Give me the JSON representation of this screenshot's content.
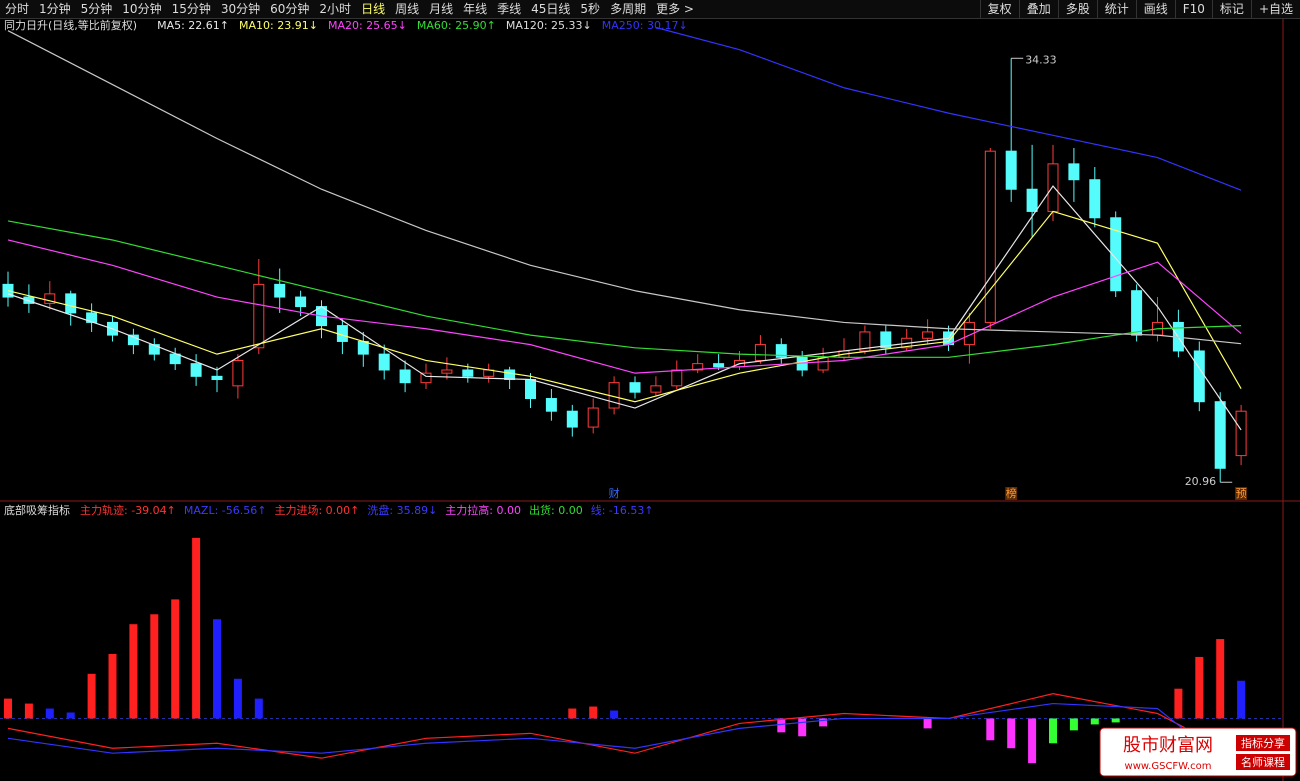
{
  "toolbar": {
    "left": [
      "分时",
      "1分钟",
      "5分钟",
      "10分钟",
      "15分钟",
      "30分钟",
      "60分钟",
      "2小时",
      "日线",
      "周线",
      "月线",
      "年线",
      "季线",
      "45日线",
      "5秒",
      "多周期",
      "更多 >"
    ],
    "right": [
      "复权",
      "叠加",
      "多股",
      "统计",
      "画线",
      "F10",
      "标记",
      "+自选"
    ]
  },
  "chart_data": [
    {
      "type": "candlestick",
      "title": "同力日升(日线,等比前复权)",
      "ylim": [
        20.4,
        35.6
      ],
      "up_color": "#ff3c3c",
      "down_color": "#54fcfc",
      "open": [
        27.2,
        26.8,
        26.6,
        26.9,
        26.3,
        26.0,
        25.6,
        25.3,
        25.0,
        24.7,
        24.3,
        24.0,
        25.2,
        27.2,
        26.8,
        26.5,
        25.9,
        25.4,
        25.0,
        24.5,
        24.1,
        24.4,
        24.5,
        24.3,
        24.5,
        24.2,
        23.6,
        23.2,
        22.7,
        23.3,
        24.1,
        23.8,
        24.0,
        24.5,
        24.7,
        24.6,
        24.8,
        25.3,
        24.9,
        24.5,
        24.9,
        25.1,
        25.7,
        25.2,
        25.5,
        25.7,
        25.3,
        26.0,
        31.4,
        30.2,
        29.5,
        31.0,
        30.5,
        29.3,
        27.0,
        25.6,
        26.0,
        25.1,
        23.5,
        21.8
      ],
      "high": [
        27.6,
        27.2,
        27.3,
        27.0,
        26.6,
        26.2,
        25.8,
        25.5,
        25.2,
        25.0,
        24.6,
        25.0,
        28.0,
        27.7,
        27.0,
        26.7,
        26.1,
        25.7,
        25.3,
        24.8,
        24.7,
        24.9,
        24.7,
        24.7,
        24.6,
        24.4,
        23.9,
        23.4,
        23.6,
        24.3,
        24.3,
        24.3,
        24.8,
        25.0,
        25.0,
        25.1,
        25.6,
        25.5,
        25.1,
        25.2,
        25.5,
        25.9,
        25.9,
        25.8,
        26.1,
        25.9,
        26.3,
        31.5,
        34.33,
        31.6,
        31.6,
        31.5,
        30.9,
        29.5,
        27.2,
        26.8,
        26.4,
        25.4,
        23.8,
        23.4
      ],
      "low": [
        26.5,
        26.3,
        26.4,
        25.9,
        25.7,
        25.4,
        25.0,
        24.8,
        24.5,
        24.0,
        23.8,
        23.6,
        25.0,
        26.3,
        26.2,
        25.5,
        25.0,
        24.6,
        24.2,
        23.8,
        23.9,
        24.2,
        24.1,
        24.1,
        23.9,
        23.3,
        22.9,
        22.4,
        22.5,
        23.1,
        23.6,
        23.7,
        23.9,
        24.4,
        24.5,
        24.5,
        24.7,
        24.7,
        24.3,
        24.4,
        24.8,
        25.0,
        25.0,
        25.1,
        25.3,
        25.1,
        24.7,
        25.8,
        29.8,
        28.7,
        29.2,
        29.8,
        29.0,
        26.8,
        25.4,
        25.4,
        24.9,
        23.2,
        20.96,
        21.5
      ],
      "close": [
        26.8,
        26.6,
        26.9,
        26.3,
        26.0,
        25.6,
        25.3,
        25.0,
        24.7,
        24.3,
        24.2,
        24.8,
        27.2,
        26.8,
        26.5,
        25.9,
        25.4,
        25.0,
        24.5,
        24.1,
        24.4,
        24.5,
        24.3,
        24.5,
        24.2,
        23.6,
        23.2,
        22.7,
        23.3,
        24.1,
        23.8,
        24.0,
        24.5,
        24.7,
        24.6,
        24.8,
        25.3,
        24.9,
        24.5,
        24.9,
        25.1,
        25.7,
        25.2,
        25.5,
        25.7,
        25.3,
        26.0,
        31.4,
        30.2,
        29.5,
        31.0,
        30.5,
        29.3,
        27.0,
        25.6,
        26.0,
        25.1,
        23.5,
        21.4,
        23.2
      ],
      "lines": [
        {
          "name": "MA5",
          "legend": ": 22.61↑",
          "color": "#e8e8e8",
          "x": [
            0,
            5,
            10,
            15,
            20,
            25,
            30,
            35,
            40,
            45,
            50,
            55,
            59
          ],
          "values": [
            26.9,
            25.8,
            24.5,
            26.5,
            24.3,
            24.2,
            23.3,
            24.7,
            25.1,
            25.5,
            30.3,
            26.5,
            22.61
          ]
        },
        {
          "name": "MA10",
          "legend": ": 23.91↓",
          "color": "#ffff66",
          "x": [
            0,
            5,
            10,
            15,
            20,
            25,
            30,
            35,
            40,
            45,
            50,
            55,
            59
          ],
          "values": [
            27.0,
            26.2,
            25.0,
            25.8,
            24.8,
            24.3,
            23.5,
            24.4,
            25.0,
            25.4,
            29.5,
            28.5,
            23.91
          ]
        },
        {
          "name": "MA20",
          "legend": ": 25.65↓",
          "color": "#ff44ff",
          "x": [
            0,
            5,
            10,
            15,
            20,
            25,
            30,
            35,
            40,
            45,
            50,
            55,
            59
          ],
          "values": [
            28.6,
            27.8,
            26.8,
            26.2,
            25.8,
            25.3,
            24.4,
            24.6,
            24.8,
            25.3,
            26.8,
            27.9,
            25.65
          ]
        },
        {
          "name": "MA60",
          "legend": ": 25.90↑",
          "color": "#33dd33",
          "x": [
            0,
            5,
            10,
            15,
            20,
            25,
            30,
            35,
            40,
            45,
            50,
            55,
            59
          ],
          "values": [
            29.2,
            28.6,
            27.8,
            27.0,
            26.2,
            25.6,
            25.2,
            25.0,
            24.9,
            24.9,
            25.3,
            25.8,
            25.9
          ]
        },
        {
          "name": "MA120",
          "legend": ": 25.33↓",
          "color": "#c8c8c8",
          "x": [
            0,
            5,
            10,
            15,
            20,
            25,
            30,
            35,
            40,
            45,
            50,
            55,
            59
          ],
          "values": [
            35.2,
            33.5,
            31.8,
            30.2,
            28.9,
            27.8,
            27.0,
            26.4,
            26.0,
            25.8,
            25.7,
            25.6,
            25.33
          ]
        },
        {
          "name": "MA250",
          "legend": ": 30.17↓",
          "color": "#3333ff",
          "x": [
            31,
            35,
            40,
            45,
            50,
            55,
            59
          ],
          "values": [
            35.3,
            34.6,
            33.4,
            32.6,
            31.9,
            31.2,
            30.17
          ]
        }
      ],
      "annotations": [
        {
          "x": 48,
          "value": 34.33
        },
        {
          "x": 58,
          "value": 20.96
        }
      ],
      "markers": [
        {
          "text": "财",
          "x": 29,
          "color": "#3a6aff"
        },
        {
          "text": "榜",
          "x": 48,
          "color": "#ff9a3a"
        },
        {
          "text": "预",
          "x": 59,
          "color": "#ff9a3a"
        }
      ]
    },
    {
      "type": "bar",
      "title": "底部吸筹指标",
      "ylim": [
        -60,
        200
      ],
      "legend": [
        {
          "text": "主力轨迹: -39.04↑",
          "color": "#ff3333"
        },
        {
          "text": "MAZL: -56.56↑",
          "color": "#3a3aff"
        },
        {
          "text": "主力进场: 0.00↑",
          "color": "#ff3333"
        },
        {
          "text": "洗盘: 35.89↓",
          "color": "#3a3aff"
        },
        {
          "text": "主力拉高: 0.00",
          "color": "#ff44ff"
        },
        {
          "text": "出货: 0.00",
          "color": "#33dd33"
        },
        {
          "text": "线: -16.53↑",
          "color": "#3a3aff"
        }
      ],
      "series": [
        {
          "color": "#ff2020",
          "x": [
            0,
            1,
            4,
            5,
            6,
            7,
            8,
            9,
            27,
            28,
            56,
            57,
            58
          ],
          "values": [
            20,
            15,
            45,
            65,
            95,
            105,
            120,
            182,
            10,
            12,
            30,
            62,
            80
          ]
        },
        {
          "color": "#2020ff",
          "x": [
            2,
            3,
            10,
            11,
            12,
            29,
            59
          ],
          "values": [
            10,
            6,
            100,
            40,
            20,
            8,
            38
          ]
        },
        {
          "color": "#ff33ff",
          "x": [
            37,
            38,
            39,
            44,
            47,
            48,
            49
          ],
          "values": [
            -14,
            -18,
            -8,
            -10,
            -22,
            -30,
            -45
          ]
        },
        {
          "color": "#33ff33",
          "x": [
            50,
            51,
            52,
            53
          ],
          "values": [
            -25,
            -12,
            -6,
            -4
          ]
        }
      ],
      "lines": [
        {
          "color": "#ff2020",
          "x": [
            0,
            5,
            10,
            15,
            20,
            25,
            30,
            35,
            40,
            45,
            50,
            55,
            59
          ],
          "values": [
            -10,
            -30,
            -25,
            -40,
            -20,
            -15,
            -35,
            -5,
            5,
            0,
            25,
            5,
            -39.04
          ]
        },
        {
          "color": "#3333ff",
          "x": [
            0,
            5,
            10,
            15,
            20,
            25,
            30,
            35,
            40,
            45,
            50,
            55,
            59
          ],
          "values": [
            -20,
            -35,
            -30,
            -35,
            -25,
            -20,
            -30,
            -10,
            0,
            0,
            15,
            10,
            -56.56
          ]
        }
      ]
    }
  ],
  "watermark": {
    "title": "股市财富网",
    "url": "www.GSCFW.com",
    "tags": [
      "指标分享",
      "名师课程"
    ]
  }
}
